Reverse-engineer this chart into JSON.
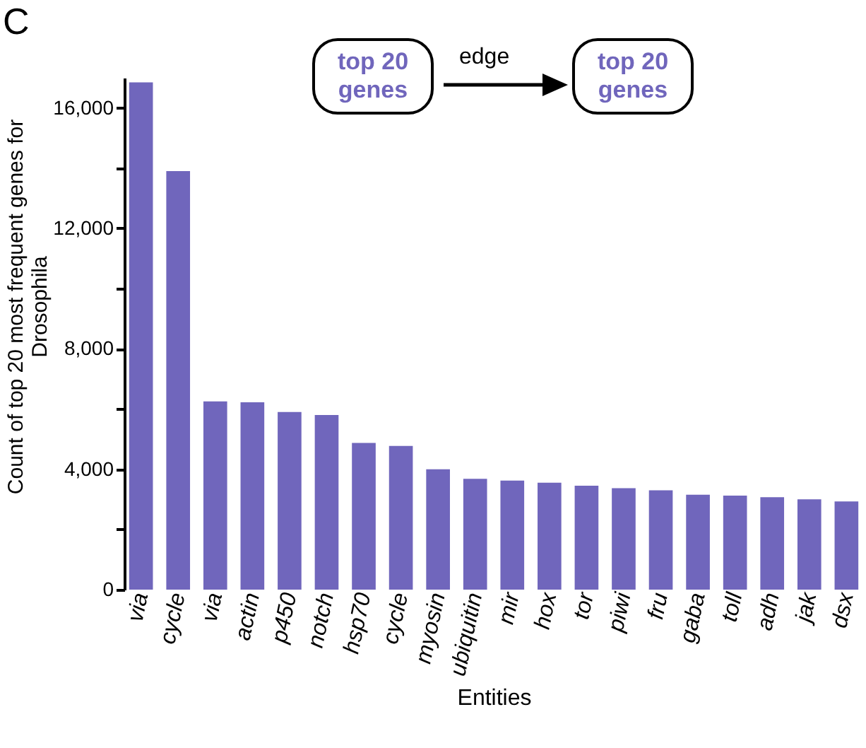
{
  "chart_data": {
    "type": "bar",
    "ylabel": "Count of top 20 most frequent genes for Drosophila",
    "xlabel": "Entities",
    "annotations": [
      "C",
      "top 20 genes",
      "edge",
      "top 20 genes"
    ],
    "categories": [
      "via",
      "cycle",
      "via",
      "actin",
      "p450",
      "notch",
      "hsp70",
      "cycle",
      "myosin",
      "ubiquitin",
      "mir",
      "hox",
      "tor",
      "piwi",
      "fru",
      "gaba",
      "toll",
      "adh",
      "jak",
      "dsx"
    ],
    "values": [
      16850,
      13900,
      6250,
      6220,
      5900,
      5800,
      4870,
      4770,
      4000,
      3680,
      3620,
      3550,
      3450,
      3370,
      3300,
      3150,
      3120,
      3070,
      3000,
      2930
    ],
    "color": "#7066bc",
    "ylim": [
      0,
      17000
    ],
    "yticks": [
      0,
      {
        "value": 2000,
        "label": null
      },
      {
        "value": 4000,
        "label": "4,000"
      },
      {
        "value": 6000,
        "label": null
      },
      {
        "value": 8000,
        "label": "8,000"
      },
      {
        "value": 10000,
        "label": null
      },
      {
        "value": 12000,
        "label": "12,000"
      },
      {
        "value": 14000,
        "label": null
      },
      {
        "value": 16000,
        "label": "16,000"
      }
    ]
  }
}
